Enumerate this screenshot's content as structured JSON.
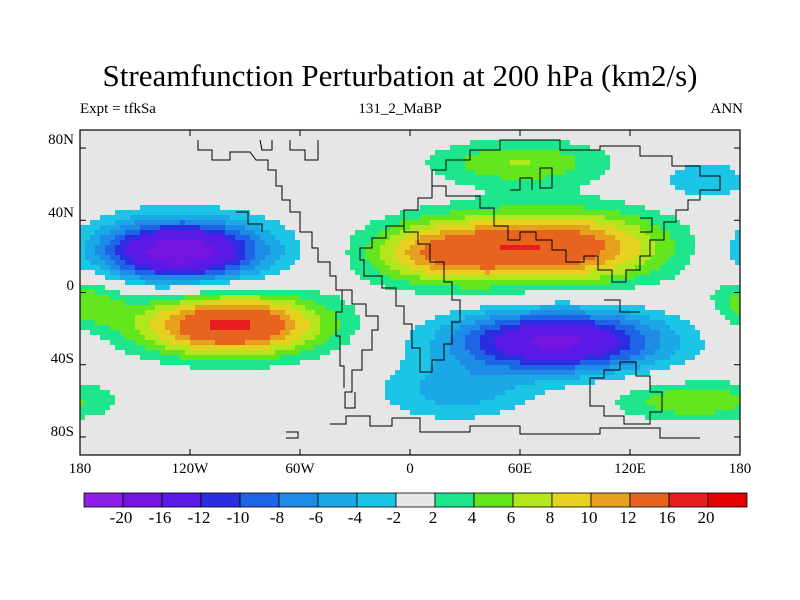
{
  "title": "Streamfunction Perturbation at 200 hPa (km2/s)",
  "subtitle": {
    "left": "Expt = tfkSa",
    "center": "131_2_MaBP",
    "right": "ANN"
  },
  "y_ticks": [
    {
      "lat": 80,
      "label": "80N"
    },
    {
      "lat": 40,
      "label": "40N"
    },
    {
      "lat": 0,
      "label": "0"
    },
    {
      "lat": -40,
      "label": "40S"
    },
    {
      "lat": -80,
      "label": "80S"
    }
  ],
  "x_ticks": [
    {
      "lon": -180,
      "label": "180"
    },
    {
      "lon": -120,
      "label": "120W"
    },
    {
      "lon": -60,
      "label": "60W"
    },
    {
      "lon": 0,
      "label": "0"
    },
    {
      "lon": 60,
      "label": "60E"
    },
    {
      "lon": 120,
      "label": "120E"
    },
    {
      "lon": 180,
      "label": "180"
    }
  ],
  "chart_data": {
    "type": "heatmap",
    "title": "Streamfunction Perturbation at 200 hPa (km2/s)",
    "units": "km2/s",
    "x_range": [
      -180,
      180
    ],
    "y_range": [
      -90,
      90
    ],
    "contour_levels": [
      -20,
      -16,
      -12,
      -10,
      -8,
      -6,
      -4,
      -2,
      2,
      4,
      6,
      8,
      10,
      12,
      16,
      20
    ],
    "colors": [
      "#8c1ee6",
      "#7314e0",
      "#5a19e6",
      "#2b2ee0",
      "#1e64e6",
      "#1e8ce6",
      "#1aa8e6",
      "#1cc4e6",
      "#e6e6e6",
      "#1ee68c",
      "#64e61e",
      "#b4e61e",
      "#e6d21e",
      "#e6a01e",
      "#e6641e",
      "#e61e1e",
      "#e60000"
    ],
    "colorbar_labels": [
      "-20",
      "-16",
      "-12",
      "-10",
      "-8",
      "-6",
      "-4",
      "-2",
      "2",
      "4",
      "6",
      "8",
      "10",
      "12",
      "16",
      "20"
    ],
    "anomalies": [
      {
        "lon": -125,
        "lat": 23,
        "amp": -19,
        "sx": 32,
        "sy": 12
      },
      {
        "lon": -98,
        "lat": -18,
        "amp": 17,
        "sx": 35,
        "sy": 12
      },
      {
        "lon": 78,
        "lat": 25,
        "amp": 15,
        "sx": 42,
        "sy": 14
      },
      {
        "lon": 15,
        "lat": 22,
        "amp": 9,
        "sx": 28,
        "sy": 12
      },
      {
        "lon": 80,
        "lat": -27,
        "amp": -17,
        "sx": 40,
        "sy": 12
      },
      {
        "lon": 25,
        "lat": -55,
        "amp": -5,
        "sx": 28,
        "sy": 11
      },
      {
        "lon": 60,
        "lat": 72,
        "amp": 6,
        "sx": 34,
        "sy": 9
      },
      {
        "lon": 160,
        "lat": 62,
        "amp": -4,
        "sx": 18,
        "sy": 8
      },
      {
        "lon": 155,
        "lat": -60,
        "amp": 6,
        "sx": 30,
        "sy": 8
      },
      {
        "lon": -175,
        "lat": -5,
        "amp": 5,
        "sx": 15,
        "sy": 10
      }
    ]
  }
}
